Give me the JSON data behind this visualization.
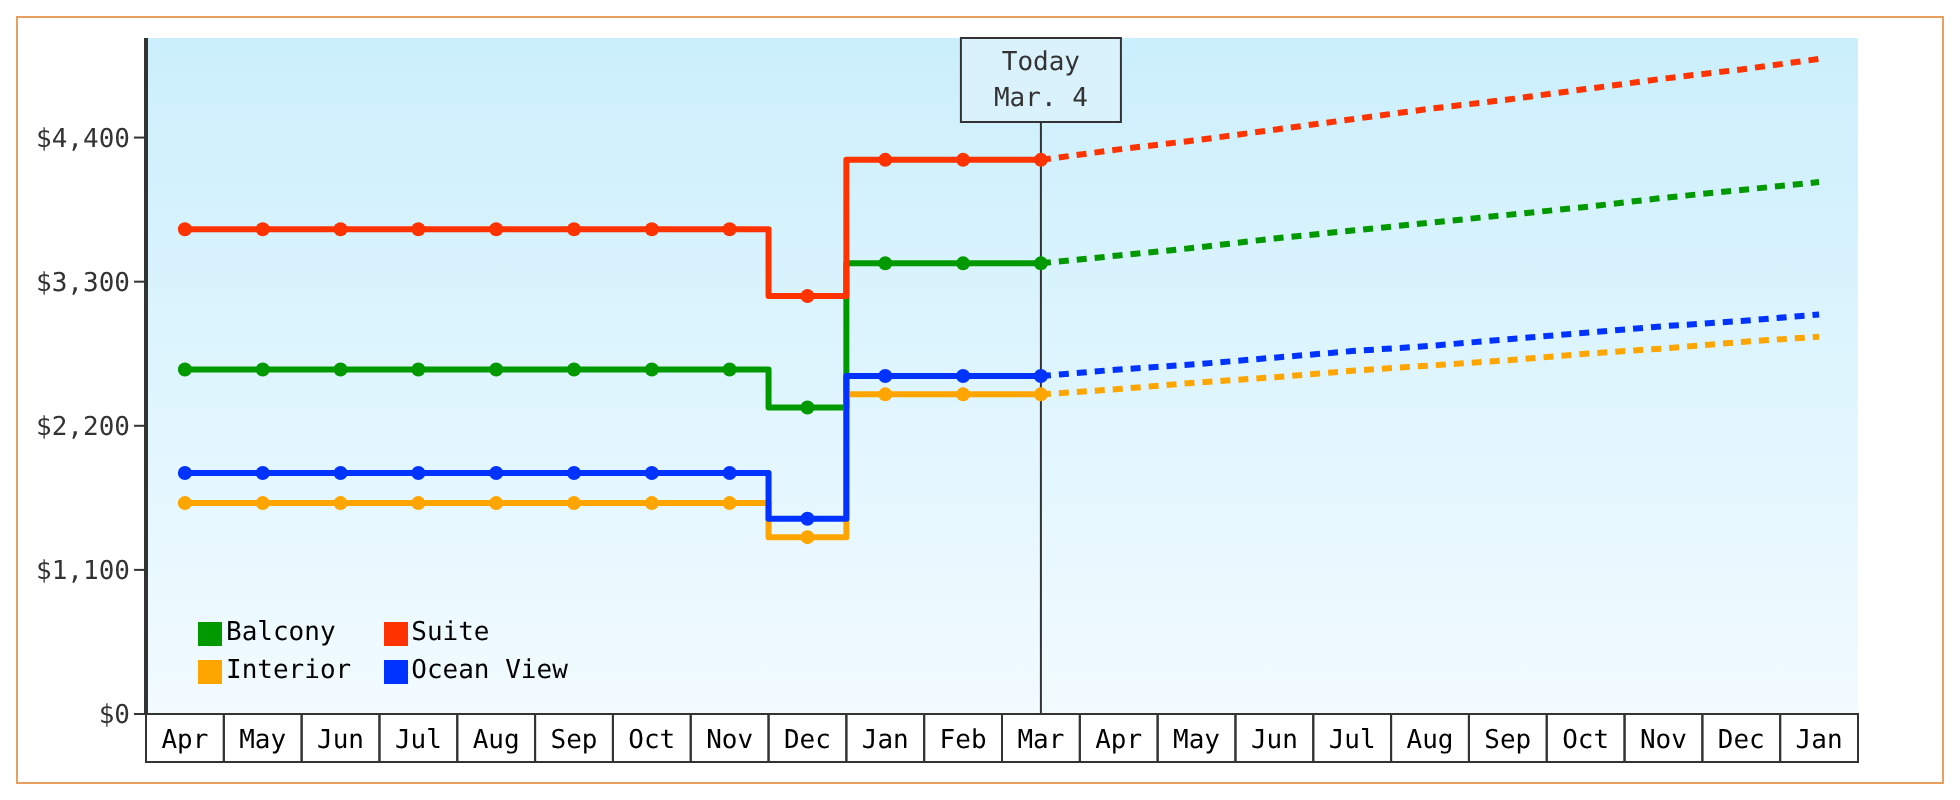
{
  "chart_data": {
    "type": "step",
    "ylim": [
      0,
      5160
    ],
    "categories": [
      "Apr",
      "May",
      "Jun",
      "Jul",
      "Aug",
      "Sep",
      "Oct",
      "Nov",
      "Dec",
      "Jan",
      "Feb",
      "Mar",
      "Apr",
      "May",
      "Jun",
      "Jul",
      "Aug",
      "Sep",
      "Oct",
      "Nov",
      "Dec",
      "Jan"
    ],
    "yticks": [
      {
        "value": 0,
        "label": "$0"
      },
      {
        "value": 1100,
        "label": "$1,100"
      },
      {
        "value": 2200,
        "label": "$2,200"
      },
      {
        "value": 3300,
        "label": "$3,300"
      },
      {
        "value": 4400,
        "label": "$4,400"
      }
    ],
    "grid": false,
    "legend": "bottom left",
    "marker": "circle",
    "line_style": "solid",
    "ref_lines": [
      {
        "axis": "x",
        "value": "Mar",
        "label": "Today\nMar. 4",
        "color": "#333333"
      }
    ],
    "series": [
      {
        "name": "Balcony",
        "color": "#009900",
        "values": [
          2630,
          2630,
          2630,
          2630,
          2630,
          2630,
          2630,
          2630,
          2340,
          3440,
          3440,
          3440,
          null,
          null,
          null,
          null,
          null,
          null,
          null,
          null,
          null,
          null
        ]
      },
      {
        "name": "Suite",
        "color": "#ff3300",
        "values": [
          3700,
          3700,
          3700,
          3700,
          3700,
          3700,
          3700,
          3700,
          3190,
          4230,
          4230,
          4230,
          null,
          null,
          null,
          null,
          null,
          null,
          null,
          null,
          null,
          null
        ]
      },
      {
        "name": "Interior",
        "color": "#ffa500",
        "values": [
          1610,
          1610,
          1610,
          1610,
          1610,
          1610,
          1610,
          1610,
          1350,
          2440,
          2440,
          2440,
          null,
          null,
          null,
          null,
          null,
          null,
          null,
          null,
          null,
          null
        ]
      },
      {
        "name": "Ocean View",
        "color": "#0033ff",
        "values": [
          1840,
          1840,
          1840,
          1840,
          1840,
          1840,
          1840,
          1840,
          1490,
          2580,
          2580,
          2580,
          null,
          null,
          null,
          null,
          null,
          null,
          null,
          null,
          null,
          null
        ]
      },
      {
        "type": "line",
        "color": "#009900",
        "line_style": "dashed",
        "marker": "none",
        "values": [
          null,
          null,
          null,
          null,
          null,
          null,
          null,
          null,
          null,
          null,
          null,
          3440,
          3500,
          3560,
          3630,
          3690,
          3750,
          3810,
          3870,
          3940,
          4000,
          4060
        ]
      },
      {
        "type": "line",
        "color": "#ff3300",
        "line_style": "dashed",
        "marker": "none",
        "values": [
          null,
          null,
          null,
          null,
          null,
          null,
          null,
          null,
          null,
          null,
          null,
          4230,
          4310,
          4380,
          4460,
          4540,
          4620,
          4690,
          4770,
          4850,
          4920,
          5000
        ]
      },
      {
        "type": "line",
        "color": "#ffa500",
        "line_style": "dashed",
        "marker": "none",
        "values": [
          null,
          null,
          null,
          null,
          null,
          null,
          null,
          null,
          null,
          null,
          null,
          2440,
          2480,
          2530,
          2570,
          2620,
          2660,
          2700,
          2750,
          2790,
          2840,
          2880
        ]
      },
      {
        "type": "line",
        "color": "#0033ff",
        "line_style": "dashed",
        "marker": "none",
        "values": [
          null,
          null,
          null,
          null,
          null,
          null,
          null,
          null,
          null,
          null,
          null,
          2580,
          2630,
          2670,
          2720,
          2770,
          2810,
          2860,
          2910,
          2960,
          3000,
          3050
        ]
      }
    ]
  }
}
